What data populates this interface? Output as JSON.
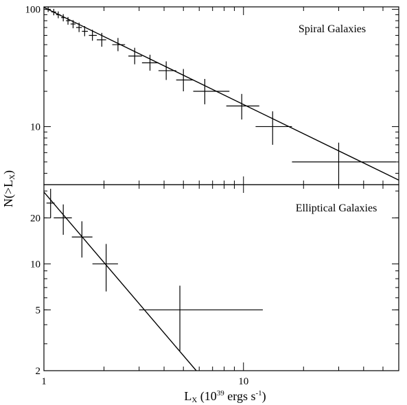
{
  "chart_data": [
    {
      "type": "scatter",
      "panel": "top",
      "label": "Spiral Galaxies",
      "xscale": "log",
      "yscale": "log",
      "xlim": [
        1,
        60
      ],
      "ylim": [
        3.2,
        105
      ],
      "xticks": [
        1,
        10
      ],
      "xtick_labels": [
        "",
        ""
      ],
      "yticks": [
        10,
        100
      ],
      "ytick_labels": [
        "10",
        "100"
      ],
      "points": [
        {
          "x": 1.05,
          "y": 100,
          "xerr": [
            1.02,
            1.08
          ],
          "yerr": [
            95,
            105
          ]
        },
        {
          "x": 1.12,
          "y": 95,
          "xerr": [
            1.09,
            1.15
          ],
          "yerr": [
            89,
            101
          ]
        },
        {
          "x": 1.18,
          "y": 90,
          "xerr": [
            1.15,
            1.21
          ],
          "yerr": [
            84,
            96
          ]
        },
        {
          "x": 1.25,
          "y": 85,
          "xerr": [
            1.22,
            1.28
          ],
          "yerr": [
            79,
            91
          ]
        },
        {
          "x": 1.32,
          "y": 80,
          "xerr": [
            1.29,
            1.35
          ],
          "yerr": [
            74,
            86
          ]
        },
        {
          "x": 1.4,
          "y": 75,
          "xerr": [
            1.36,
            1.44
          ],
          "yerr": [
            69,
            81
          ]
        },
        {
          "x": 1.5,
          "y": 70,
          "xerr": [
            1.45,
            1.55
          ],
          "yerr": [
            64,
            77
          ]
        },
        {
          "x": 1.6,
          "y": 65,
          "xerr": [
            1.55,
            1.66
          ],
          "yerr": [
            59,
            72
          ]
        },
        {
          "x": 1.75,
          "y": 60,
          "xerr": [
            1.68,
            1.84
          ],
          "yerr": [
            54,
            67
          ]
        },
        {
          "x": 1.95,
          "y": 55,
          "xerr": [
            1.84,
            2.05
          ],
          "yerr": [
            48,
            63
          ]
        },
        {
          "x": 2.35,
          "y": 50,
          "xerr": [
            2.2,
            2.55
          ],
          "yerr": [
            44,
            57
          ]
        },
        {
          "x": 2.85,
          "y": 40,
          "xerr": [
            2.65,
            3.1
          ],
          "yerr": [
            34,
            47
          ]
        },
        {
          "x": 3.4,
          "y": 35,
          "xerr": [
            3.1,
            3.75
          ],
          "yerr": [
            30,
            41
          ]
        },
        {
          "x": 4.1,
          "y": 30,
          "xerr": [
            3.75,
            4.6
          ],
          "yerr": [
            25,
            36
          ]
        },
        {
          "x": 5.0,
          "y": 25,
          "xerr": [
            4.6,
            5.6
          ],
          "yerr": [
            20,
            31
          ]
        },
        {
          "x": 6.4,
          "y": 20,
          "xerr": [
            5.6,
            8.5
          ],
          "yerr": [
            15.5,
            25.5
          ]
        },
        {
          "x": 9.8,
          "y": 15,
          "xerr": [
            8.2,
            12.0
          ],
          "yerr": [
            11.5,
            19
          ]
        },
        {
          "x": 14.0,
          "y": 10,
          "xerr": [
            11.5,
            17.5
          ],
          "yerr": [
            7,
            13.5
          ]
        },
        {
          "x": 30.0,
          "y": 5,
          "xerr": [
            17.5,
            58
          ],
          "yerr": [
            2.9,
            7.3
          ]
        }
      ],
      "fit_line": {
        "x": [
          1,
          60
        ],
        "y": [
          104,
          3.5
        ]
      }
    },
    {
      "type": "scatter",
      "panel": "bottom",
      "label": "Elliptical Galaxies",
      "xscale": "log",
      "yscale": "log",
      "xlim": [
        1,
        60
      ],
      "ylim": [
        2,
        33
      ],
      "xticks": [
        1,
        10
      ],
      "xtick_labels": [
        "1",
        "10"
      ],
      "yticks": [
        2,
        5,
        10,
        20
      ],
      "ytick_labels": [
        "2",
        "5",
        "10",
        "20"
      ],
      "points": [
        {
          "x": 1.08,
          "y": 25,
          "xerr": [
            1.03,
            1.13
          ],
          "yerr": [
            20,
            31
          ]
        },
        {
          "x": 1.25,
          "y": 20,
          "xerr": [
            1.12,
            1.38
          ],
          "yerr": [
            15.5,
            24.5
          ]
        },
        {
          "x": 1.55,
          "y": 15,
          "xerr": [
            1.38,
            1.75
          ],
          "yerr": [
            11,
            19
          ]
        },
        {
          "x": 2.05,
          "y": 10,
          "xerr": [
            1.75,
            2.35
          ],
          "yerr": [
            6.6,
            13.5
          ]
        },
        {
          "x": 4.8,
          "y": 5,
          "xerr": [
            3.0,
            12.5
          ],
          "yerr": [
            2.7,
            7.2
          ]
        }
      ],
      "fit_line": {
        "x": [
          1,
          5.8
        ],
        "y": [
          29.5,
          2
        ]
      }
    }
  ],
  "xlabel": "L",
  "xlabel_sub": "X",
  "xlabel_tail": " (10",
  "xlabel_sup": "39",
  "xlabel_units": " ergs s",
  "xlabel_sup2": "-1",
  "xlabel_close": ")",
  "ylabel": "N(>L",
  "ylabel_sub": "X",
  "ylabel_close": ")"
}
